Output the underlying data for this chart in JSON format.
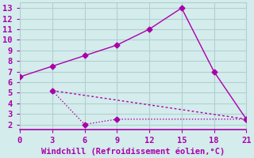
{
  "line1_x": [
    0,
    3,
    6,
    9,
    12,
    15,
    18,
    21
  ],
  "line1_y": [
    6.5,
    7.5,
    8.5,
    9.5,
    11,
    13,
    7,
    2.5
  ],
  "line2_x": [
    3,
    6,
    9,
    21
  ],
  "line2_y": [
    5.2,
    2.0,
    2.5,
    2.5
  ],
  "line3_x": [
    3,
    21
  ],
  "line3_y": [
    5.2,
    2.5
  ],
  "line_color": "#aa00aa",
  "bg_color": "#d4ecec",
  "grid_color": "#b0d0d0",
  "xlabel": "Windchill (Refroidissement éolien,°C)",
  "xlim": [
    0,
    21
  ],
  "ylim": [
    1.5,
    13.5
  ],
  "xticks": [
    0,
    3,
    6,
    9,
    12,
    15,
    18,
    21
  ],
  "yticks": [
    2,
    3,
    4,
    5,
    6,
    7,
    8,
    9,
    10,
    11,
    12,
    13
  ],
  "markersize": 3.5,
  "linewidth": 1.0,
  "xlabel_fontsize": 7.5,
  "tick_fontsize": 7.5
}
